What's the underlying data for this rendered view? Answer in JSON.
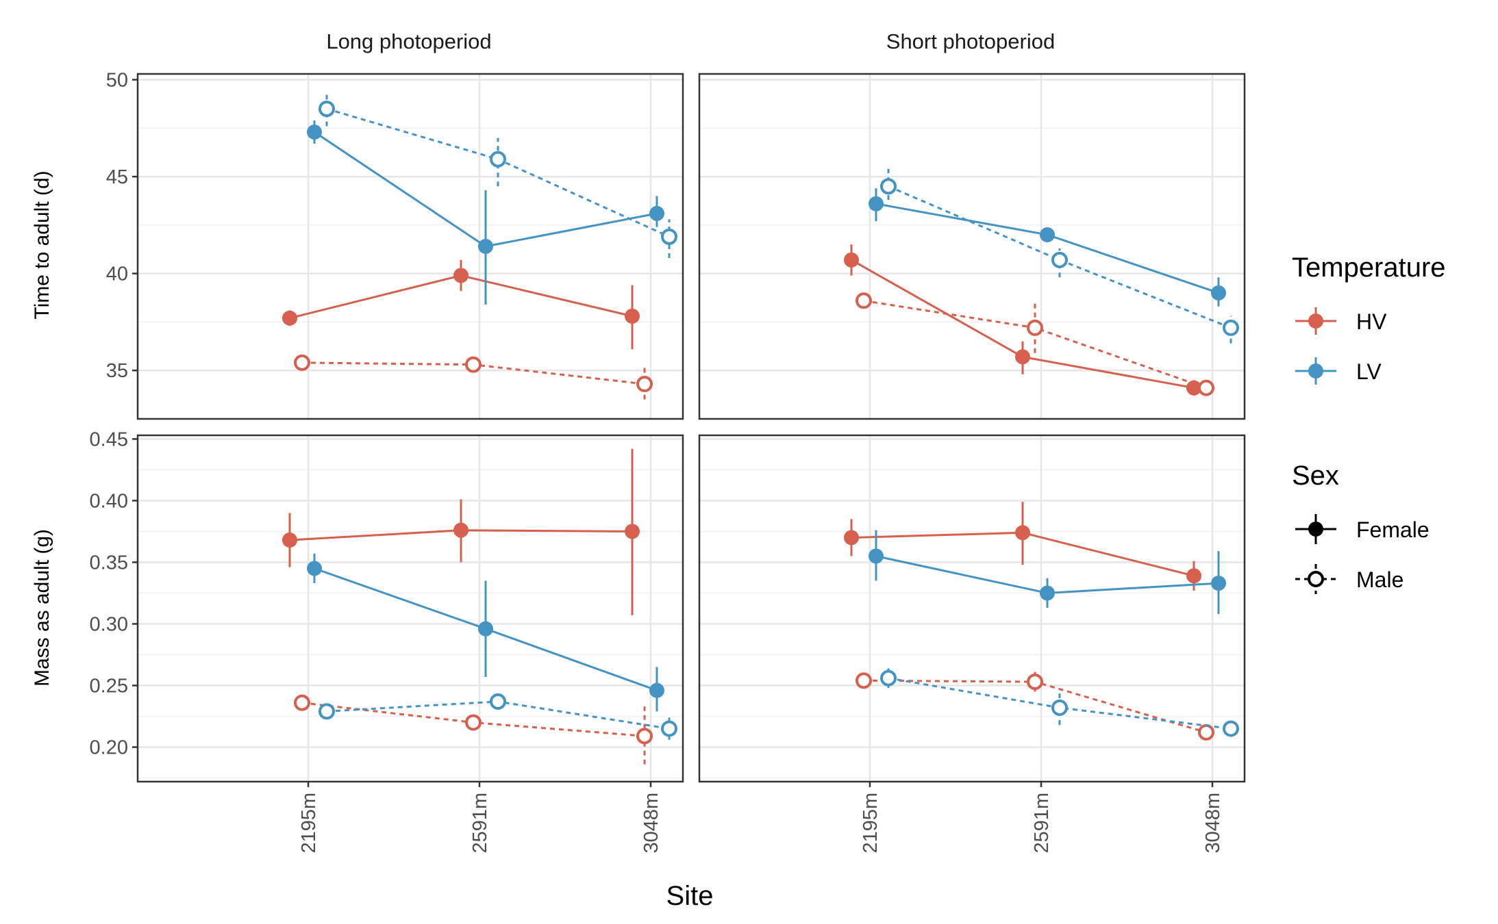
{
  "chart_data": {
    "type": "line",
    "facet_columns": [
      "Long photoperiod",
      "Short photoperiod"
    ],
    "facet_rows": [
      {
        "ylabel": "Time to adult (d)",
        "ylim": [
          32.5,
          50.3
        ],
        "breaks": [
          35,
          40,
          45,
          50
        ],
        "tick_labels": [
          "35",
          "40",
          "45",
          "50"
        ]
      },
      {
        "ylabel": "Mass as adult (g)",
        "ylim": [
          0.172,
          0.453
        ],
        "breaks": [
          0.2,
          0.25,
          0.3,
          0.35,
          0.4,
          0.45
        ],
        "tick_labels": [
          "0.20",
          "0.25",
          "0.30",
          "0.35",
          "0.40",
          "0.45"
        ]
      }
    ],
    "categories": [
      "2195m",
      "2591m",
      "3048m"
    ],
    "xlabel": "Site",
    "grid": true,
    "legend": {
      "position": "right",
      "temperature": {
        "title": "Temperature",
        "entries": [
          "HV",
          "LV"
        ]
      },
      "sex": {
        "title": "Sex",
        "entries": [
          "Female",
          "Male"
        ]
      }
    },
    "colors": {
      "HV": "#d6604d",
      "LV": "#4393c3"
    },
    "series": [
      {
        "panel": "Time to adult (d)",
        "photoperiod": "Long photoperiod",
        "temperature": "HV",
        "sex": "Female",
        "values": [
          37.7,
          39.9,
          37.8
        ],
        "errors": [
          [
            37.3,
            38.1
          ],
          [
            39.1,
            40.7
          ],
          [
            36.1,
            39.4
          ]
        ]
      },
      {
        "panel": "Time to adult (d)",
        "photoperiod": "Long photoperiod",
        "temperature": "HV",
        "sex": "Male",
        "values": [
          35.4,
          35.3,
          34.3
        ],
        "errors": [
          [
            35.1,
            35.7
          ],
          [
            35.0,
            35.6
          ],
          [
            33.5,
            35.2
          ]
        ]
      },
      {
        "panel": "Time to adult (d)",
        "photoperiod": "Long photoperiod",
        "temperature": "LV",
        "sex": "Female",
        "values": [
          47.3,
          41.4,
          43.1
        ],
        "errors": [
          [
            46.7,
            47.9
          ],
          [
            38.4,
            44.3
          ],
          [
            42.4,
            44.0
          ]
        ]
      },
      {
        "panel": "Time to adult (d)",
        "photoperiod": "Long photoperiod",
        "temperature": "LV",
        "sex": "Male",
        "values": [
          48.5,
          45.9,
          41.9
        ],
        "errors": [
          [
            47.6,
            49.3
          ],
          [
            44.5,
            47.0
          ],
          [
            40.8,
            42.8
          ]
        ]
      },
      {
        "panel": "Time to adult (d)",
        "photoperiod": "Short photoperiod",
        "temperature": "HV",
        "sex": "Female",
        "values": [
          40.7,
          35.7,
          34.1
        ],
        "errors": [
          [
            39.9,
            41.5
          ],
          [
            34.8,
            36.5
          ],
          [
            33.7,
            34.5
          ]
        ]
      },
      {
        "panel": "Time to adult (d)",
        "photoperiod": "Short photoperiod",
        "temperature": "HV",
        "sex": "Male",
        "values": [
          38.6,
          37.2,
          34.1
        ],
        "errors": [
          [
            38.3,
            38.9
          ],
          [
            35.9,
            38.5
          ],
          [
            33.8,
            34.4
          ]
        ]
      },
      {
        "panel": "Time to adult (d)",
        "photoperiod": "Short photoperiod",
        "temperature": "LV",
        "sex": "Female",
        "values": [
          43.6,
          42.0,
          39.0
        ],
        "errors": [
          [
            42.7,
            44.4
          ],
          [
            41.7,
            42.3
          ],
          [
            38.3,
            39.8
          ]
        ]
      },
      {
        "panel": "Time to adult (d)",
        "photoperiod": "Short photoperiod",
        "temperature": "LV",
        "sex": "Male",
        "values": [
          44.5,
          40.7,
          37.2
        ],
        "errors": [
          [
            43.8,
            45.4
          ],
          [
            39.8,
            41.3
          ],
          [
            36.4,
            37.8
          ]
        ]
      },
      {
        "panel": "Mass as adult (g)",
        "photoperiod": "Long photoperiod",
        "temperature": "HV",
        "sex": "Female",
        "values": [
          0.368,
          0.376,
          0.375
        ],
        "errors": [
          [
            0.346,
            0.39
          ],
          [
            0.35,
            0.401
          ],
          [
            0.307,
            0.442
          ]
        ]
      },
      {
        "panel": "Mass as adult (g)",
        "photoperiod": "Long photoperiod",
        "temperature": "HV",
        "sex": "Male",
        "values": [
          0.236,
          0.22,
          0.209
        ],
        "errors": [
          [
            0.23,
            0.242
          ],
          [
            0.214,
            0.226
          ],
          [
            0.186,
            0.233
          ]
        ]
      },
      {
        "panel": "Mass as adult (g)",
        "photoperiod": "Long photoperiod",
        "temperature": "LV",
        "sex": "Female",
        "values": [
          0.345,
          0.296,
          0.246
        ],
        "errors": [
          [
            0.333,
            0.357
          ],
          [
            0.257,
            0.335
          ],
          [
            0.229,
            0.265
          ]
        ]
      },
      {
        "panel": "Mass as adult (g)",
        "photoperiod": "Long photoperiod",
        "temperature": "LV",
        "sex": "Male",
        "values": [
          0.229,
          0.237,
          0.215
        ],
        "errors": [
          [
            0.224,
            0.234
          ],
          [
            0.231,
            0.243
          ],
          [
            0.206,
            0.224
          ]
        ]
      },
      {
        "panel": "Mass as adult (g)",
        "photoperiod": "Short photoperiod",
        "temperature": "HV",
        "sex": "Female",
        "values": [
          0.37,
          0.374,
          0.339
        ],
        "errors": [
          [
            0.355,
            0.385
          ],
          [
            0.348,
            0.399
          ],
          [
            0.327,
            0.351
          ]
        ]
      },
      {
        "panel": "Mass as adult (g)",
        "photoperiod": "Short photoperiod",
        "temperature": "HV",
        "sex": "Male",
        "values": [
          0.254,
          0.253,
          0.212
        ],
        "errors": [
          [
            0.249,
            0.259
          ],
          [
            0.245,
            0.261
          ],
          [
            0.208,
            0.216
          ]
        ]
      },
      {
        "panel": "Mass as adult (g)",
        "photoperiod": "Short photoperiod",
        "temperature": "LV",
        "sex": "Female",
        "values": [
          0.355,
          0.325,
          0.333
        ],
        "errors": [
          [
            0.335,
            0.376
          ],
          [
            0.313,
            0.337
          ],
          [
            0.308,
            0.359
          ]
        ]
      },
      {
        "panel": "Mass as adult (g)",
        "photoperiod": "Short photoperiod",
        "temperature": "LV",
        "sex": "Male",
        "values": [
          0.256,
          0.232,
          0.215
        ],
        "errors": [
          [
            0.248,
            0.264
          ],
          [
            0.218,
            0.244
          ],
          [
            0.211,
            0.219
          ]
        ]
      }
    ]
  }
}
